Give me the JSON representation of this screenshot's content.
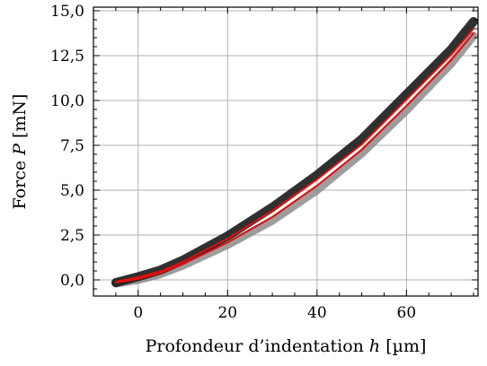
{
  "chart_data": {
    "type": "line",
    "xlabel_prefix": "Profondeur d’indentation ",
    "xlabel_symbol": "h",
    "xlabel_unit": " [µm]",
    "ylabel_prefix": "Force ",
    "ylabel_symbol": "P",
    "ylabel_unit": " [mN]",
    "xlim": [
      -10,
      76
    ],
    "ylim": [
      -0.9,
      15.2
    ],
    "xticks": [
      0,
      20,
      40,
      60
    ],
    "xtick_labels": [
      "0",
      "20",
      "40",
      "60"
    ],
    "yticks": [
      0,
      2.5,
      5,
      7.5,
      10,
      12.5,
      15
    ],
    "ytick_labels": [
      "0,0",
      "2,5",
      "5,0",
      "7,5",
      "10,0",
      "12,5",
      "15,0"
    ],
    "grid": true,
    "colors": {
      "loading_band": "#1a1a1a",
      "unloading_band": "#8c8c8c",
      "mean_curve": "#e01010"
    },
    "series": [
      {
        "role": "loading-band",
        "x": [
          -5,
          0,
          5,
          10,
          20,
          30,
          40,
          50,
          60,
          70,
          75
        ],
        "y": [
          -0.15,
          0.18,
          0.55,
          1.1,
          2.45,
          4.05,
          5.85,
          7.85,
          10.35,
          12.85,
          14.4
        ]
      },
      {
        "role": "unloading-band",
        "x": [
          -5,
          0,
          5,
          10,
          20,
          30,
          40,
          50,
          60,
          70,
          75
        ],
        "y": [
          -0.2,
          0.0,
          0.32,
          0.8,
          1.95,
          3.3,
          5.0,
          7.05,
          9.45,
          12.05,
          13.6
        ]
      },
      {
        "role": "mean-loading",
        "x": [
          -5,
          0,
          5,
          10,
          20,
          30,
          40,
          50,
          60,
          70,
          75
        ],
        "y": [
          -0.1,
          0.15,
          0.48,
          1.0,
          2.3,
          3.85,
          5.6,
          7.55,
          10.05,
          12.55,
          14.0
        ]
      },
      {
        "role": "mean-unloading",
        "x": [
          -5,
          0,
          5,
          10,
          20,
          30,
          40,
          50,
          60,
          70,
          75
        ],
        "y": [
          -0.15,
          0.05,
          0.38,
          0.88,
          2.08,
          3.5,
          5.25,
          7.25,
          9.7,
          12.25,
          13.75
        ]
      }
    ]
  }
}
